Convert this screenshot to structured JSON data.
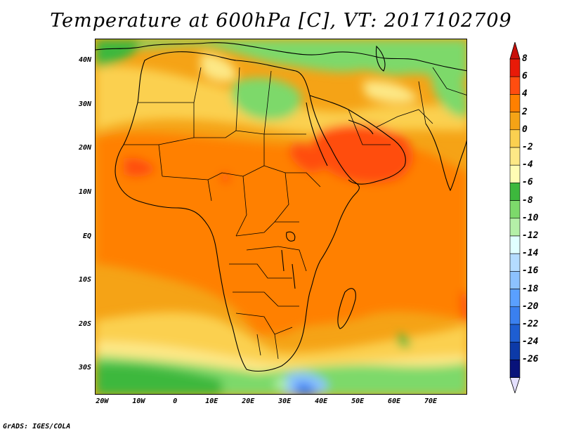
{
  "title": "Temperature at 600hPa [C], VT: 2017102709",
  "credit": "GrADS: IGES/COLA",
  "map": {
    "lat_labels": [
      "40N",
      "30N",
      "20N",
      "10N",
      "EQ",
      "10S",
      "20S",
      "30S"
    ],
    "lat_values": [
      40,
      30,
      20,
      10,
      0,
      -10,
      -20,
      -30
    ],
    "lon_labels": [
      "20W",
      "10W",
      "0",
      "10E",
      "20E",
      "30E",
      "40E",
      "50E",
      "60E",
      "70E"
    ],
    "lon_values": [
      -20,
      -10,
      0,
      10,
      20,
      30,
      40,
      50,
      60,
      70
    ],
    "lat_range": [
      -36,
      45
    ],
    "lon_range": [
      -22,
      80
    ],
    "variable": "Temperature",
    "level": "600hPa",
    "units": "C",
    "valid_time": "2017102709"
  },
  "colorbar": {
    "labels": [
      "8",
      "6",
      "4",
      "2",
      "0",
      "-2",
      "-4",
      "-6",
      "-8",
      "-10",
      "-12",
      "-14",
      "-16",
      "-18",
      "-20",
      "-22",
      "-24",
      "-26"
    ],
    "colors": [
      "#e81a08",
      "#ff4d10",
      "#ff8000",
      "#f5a316",
      "#fbd050",
      "#fde886",
      "#fffcb4",
      "#3db83d",
      "#7dd96b",
      "#b4f0a8",
      "#e0ffff",
      "#b4dcff",
      "#8cc2ff",
      "#5aa0ff",
      "#3a80f0",
      "#1e5ed2",
      "#0c3aa8",
      "#08127a"
    ],
    "top_arrow_color": "#c8100a",
    "bottom_arrow_color": "#e4e0ff"
  }
}
